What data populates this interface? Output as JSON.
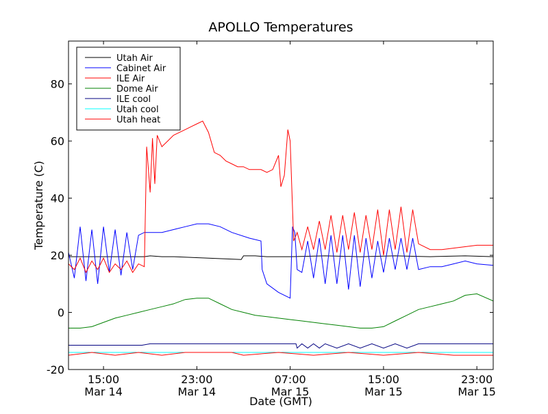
{
  "chart_data": {
    "type": "line",
    "title": "APOLLO Temperatures",
    "xlabel": "Date (GMT)",
    "ylabel": "Temperature (C)",
    "ylim": [
      -20,
      95
    ],
    "x_unit": "hours since Mar 14 12:00 GMT",
    "xlim": [
      0,
      36.4
    ],
    "grid": false,
    "legend_position": "top-left",
    "y_ticks": [
      {
        "value": -20,
        "label": "-20"
      },
      {
        "value": 0,
        "label": "0"
      },
      {
        "value": 20,
        "label": "20"
      },
      {
        "value": 40,
        "label": "40"
      },
      {
        "value": 60,
        "label": "60"
      },
      {
        "value": 80,
        "label": "80"
      }
    ],
    "x_ticks": [
      {
        "value": 3,
        "time": "15:00",
        "date": "Mar 14"
      },
      {
        "value": 11,
        "time": "23:00",
        "date": "Mar 14"
      },
      {
        "value": 19,
        "time": "07:00",
        "date": "Mar 15"
      },
      {
        "value": 27,
        "time": "15:00",
        "date": "Mar 15"
      },
      {
        "value": 35,
        "time": "23:00",
        "date": "Mar 15"
      }
    ],
    "series": [
      {
        "name": "Utah Air",
        "color": "#000000",
        "x": [
          0,
          6.5,
          7,
          8,
          9,
          12,
          14.8,
          15,
          16,
          17,
          19,
          22,
          25,
          28,
          31,
          34,
          36.4
        ],
        "values": [
          19.5,
          19.5,
          19.8,
          19.5,
          19.5,
          19,
          18.5,
          19.8,
          19.8,
          19.5,
          19.5,
          19.8,
          19.5,
          19.8,
          19.5,
          19.8,
          19.5
        ]
      },
      {
        "name": "Cabinet Air",
        "color": "#0000ff",
        "x": [
          0,
          0.5,
          1,
          1.5,
          2,
          2.5,
          3,
          3.5,
          4,
          4.5,
          5,
          5.5,
          6,
          6.5,
          8,
          9,
          10,
          11,
          12,
          13,
          14,
          15.5,
          16.5,
          16.6,
          17,
          18,
          19,
          19.2,
          19.4,
          19.6,
          20,
          20.5,
          21,
          21.5,
          22,
          22.5,
          23,
          23.5,
          24,
          24.5,
          25,
          25.5,
          26,
          26.5,
          27,
          27.5,
          28,
          28.5,
          29,
          29.5,
          30,
          31,
          32,
          33,
          34,
          35,
          36.4
        ],
        "values": [
          21,
          12,
          30,
          11,
          29,
          10,
          30,
          14,
          29,
          13,
          28,
          15,
          27,
          28,
          28,
          29,
          30,
          31,
          31,
          30,
          28,
          26,
          25,
          15,
          10,
          7,
          5,
          30,
          28,
          15,
          14,
          25,
          12,
          26,
          10,
          27,
          10,
          27,
          8,
          27,
          9,
          26,
          12,
          25,
          14,
          26,
          15,
          26,
          15,
          26,
          15,
          16,
          16,
          17,
          18,
          17,
          16.5
        ]
      },
      {
        "name": "ILE Air",
        "color": "#ff0000",
        "x": [
          0,
          0.5,
          1,
          1.5,
          2,
          2.5,
          3,
          3.5,
          4,
          4.5,
          5,
          5.5,
          6,
          6.5,
          6.7,
          7,
          7.2,
          7.4,
          7.6,
          8,
          8.5,
          9,
          9.5,
          10,
          10.5,
          11,
          11.5,
          12,
          12.5,
          13,
          13.5,
          14,
          14.5,
          15,
          15.5,
          16,
          16.5,
          17,
          17.5,
          18,
          18.2,
          18.5,
          18.8,
          19,
          19.3,
          19.6,
          20,
          20.5,
          21,
          21.5,
          22,
          22.5,
          23,
          23.5,
          24,
          24.5,
          25,
          25.5,
          26,
          26.5,
          27,
          27.5,
          28,
          28.5,
          29,
          29.5,
          30,
          31,
          32,
          33,
          34,
          35,
          36.4
        ],
        "values": [
          17,
          15,
          19,
          14,
          18,
          15,
          19,
          14,
          17,
          15,
          18,
          14,
          17,
          16,
          58,
          42,
          61,
          45,
          62,
          58,
          60,
          62,
          63,
          64,
          65,
          66,
          67,
          63,
          56,
          55,
          53,
          52,
          51,
          51,
          50,
          50,
          50,
          49,
          50,
          55,
          44,
          48,
          64,
          60,
          25,
          28,
          22,
          30,
          22,
          32,
          22,
          34,
          21,
          34,
          22,
          35,
          21,
          34,
          22,
          36,
          20,
          36,
          22,
          37,
          21,
          36,
          24,
          22,
          22,
          22.5,
          23,
          23.5,
          23.5
        ]
      },
      {
        "name": "Dome Air",
        "color": "#008000",
        "x": [
          0,
          1,
          2,
          3,
          4,
          5,
          6,
          7,
          8,
          9,
          10,
          11,
          12,
          13,
          14,
          15,
          16,
          17,
          18,
          19,
          20,
          21,
          22,
          23,
          24,
          25,
          26,
          27,
          28,
          29,
          30,
          31,
          32,
          33,
          34,
          35,
          36.4
        ],
        "values": [
          -5.5,
          -5.5,
          -5,
          -3.5,
          -2,
          -1,
          0,
          1,
          2,
          3,
          4.5,
          5,
          5,
          3,
          1,
          0,
          -1,
          -1.5,
          -2,
          -2.5,
          -3,
          -3.5,
          -4,
          -4.5,
          -5,
          -5.5,
          -5.5,
          -5,
          -3,
          -1,
          1,
          2,
          3,
          4,
          6,
          6.5,
          4
        ]
      },
      {
        "name": "ILE cool",
        "color": "#000080",
        "x": [
          0,
          6.3,
          7,
          12,
          17,
          19,
          19.5,
          19.6,
          20,
          20.5,
          21,
          21.5,
          22,
          23,
          24,
          25,
          26,
          27,
          28,
          29,
          30,
          31,
          32,
          34,
          36.4
        ],
        "values": [
          -11.5,
          -11.5,
          -11,
          -11,
          -11,
          -11,
          -11,
          -12.5,
          -11,
          -12.5,
          -11,
          -12.5,
          -11,
          -12.5,
          -11,
          -12.5,
          -11,
          -12.5,
          -11,
          -12.5,
          -11,
          -11,
          -11,
          -11,
          -11
        ]
      },
      {
        "name": "Utah cool",
        "color": "#00ffff",
        "x": [
          0,
          36.4
        ],
        "values": [
          -14,
          -14
        ]
      },
      {
        "name": "Utah heat",
        "color": "#ff0000",
        "x": [
          0,
          2,
          4,
          6,
          8,
          10,
          12,
          14,
          15,
          18,
          21,
          24,
          27,
          30,
          33,
          36.4
        ],
        "values": [
          -15,
          -14,
          -15,
          -14,
          -15,
          -14,
          -14,
          -14,
          -15,
          -14,
          -15,
          -14,
          -15,
          -14,
          -15,
          -15
        ]
      }
    ]
  }
}
